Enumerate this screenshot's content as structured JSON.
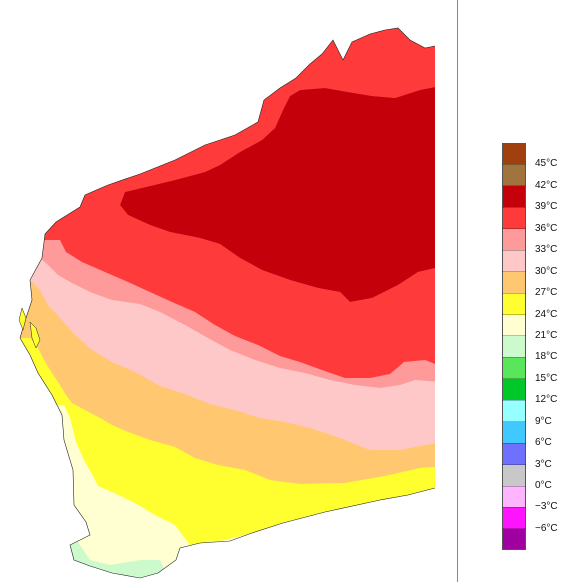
{
  "legend": {
    "items": [
      {
        "label": "",
        "color": "#a0400f"
      },
      {
        "label": "45°C",
        "color": "#a0743c"
      },
      {
        "label": "42°C",
        "color": "#c4000a"
      },
      {
        "label": "39°C",
        "color": "#ff3a3a"
      },
      {
        "label": "36°C",
        "color": "#ff9a9a"
      },
      {
        "label": "33°C",
        "color": "#ffc8c8"
      },
      {
        "label": "30°C",
        "color": "#ffc870"
      },
      {
        "label": "27°C",
        "color": "#ffff30"
      },
      {
        "label": "24°C",
        "color": "#ffffd2"
      },
      {
        "label": "21°C",
        "color": "#cdfacd"
      },
      {
        "label": "18°C",
        "color": "#5ae65a"
      },
      {
        "label": "15°C",
        "color": "#00c828"
      },
      {
        "label": "12°C",
        "color": "#96ffff"
      },
      {
        "label": "9°C",
        "color": "#40c8ff"
      },
      {
        "label": "6°C",
        "color": "#7070ff"
      },
      {
        "label": "3°C",
        "color": "#c8c8c8"
      },
      {
        "label": "0°C",
        "color": "#ffb4ff"
      },
      {
        "label": "−3°C",
        "color": "#ff14ff"
      },
      {
        "label": "−6°C",
        "color": "#a000a0"
      }
    ]
  },
  "map": {
    "zone_colors": {
      "over_39": "#c4000a",
      "36_39": "#ff3a3a",
      "33_36": "#ff9a9a",
      "30_33": "#ffc8c8",
      "27_30": "#ffc870",
      "24_27": "#ffff30",
      "21_24": "#ffffd2",
      "18_21": "#cdfacd"
    }
  }
}
